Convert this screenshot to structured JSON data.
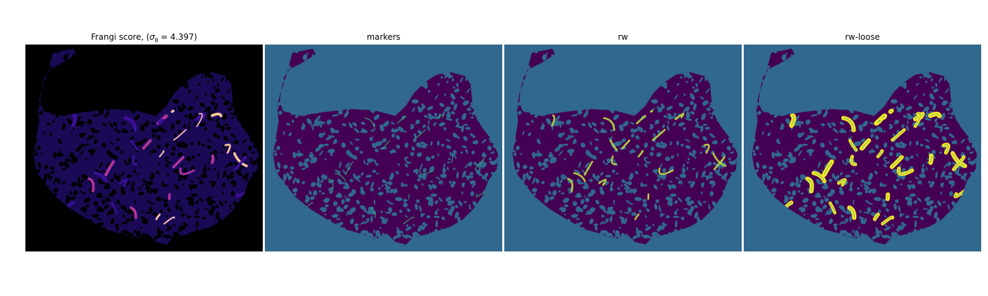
{
  "figure": {
    "panels": [
      {
        "id": "frangi",
        "title_prefix": "Frangi score, (",
        "title_sigma": "σ",
        "title_sub": "8",
        "title_suffix": " = 4.397)",
        "colormap": "magma"
      },
      {
        "id": "markers",
        "title": "markers",
        "colormap": "viridis"
      },
      {
        "id": "rw",
        "title": "rw",
        "colormap": "viridis"
      },
      {
        "id": "rw-loose",
        "title": "rw-loose",
        "colormap": "viridis"
      }
    ],
    "colors": {
      "magma_background": "#000000",
      "magma_low": "#3b0f9a",
      "magma_mid": "#b7378b",
      "magma_high": "#fcce8c",
      "viridis_background": "#31688e",
      "viridis_tissue": "#440154",
      "viridis_marker": "#35b779",
      "viridis_vessel": "#fde725"
    }
  }
}
